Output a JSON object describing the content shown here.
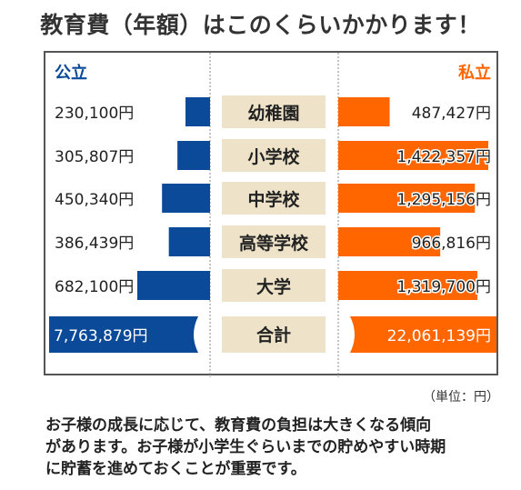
{
  "title": "教育費（年額）はこのくらいかかります！",
  "legend": {
    "public": "公立",
    "private": "私立"
  },
  "colors": {
    "public": "#0b4a99",
    "private": "#ff6600",
    "label_bg": "#eee3c8"
  },
  "unit_note": "（単位：円）",
  "description": [
    "お子様の成長に応じて、教育費の負担は大きくなる傾向",
    "があります。お子様が小学生ぐらいまでの貯めやすい時期",
    "に貯蓄を進めておくことが重要です。"
  ],
  "chart_data": {
    "type": "bar",
    "title": "教育費（年額）はこのくらいかかります！",
    "categories": [
      "幼稚園",
      "小学校",
      "中学校",
      "高等学校",
      "大学"
    ],
    "series": [
      {
        "name": "公立",
        "values": [
          230100,
          305807,
          450340,
          386439,
          682100
        ],
        "labels": [
          "230,100円",
          "305,807円",
          "450,340円",
          "386,439円",
          "682,100円"
        ]
      },
      {
        "name": "私立",
        "values": [
          487427,
          1422357,
          1295156,
          966816,
          1319700
        ],
        "labels": [
          "487,427円",
          "1,422,357円",
          "1,295,156円",
          "966,816円",
          "1,319,700円"
        ]
      }
    ],
    "total": {
      "category": "合計",
      "public": 7763879,
      "private": 22061139,
      "public_label": "7,763,879円",
      "private_label": "22,061,139円"
    },
    "unit": "円",
    "grid": false
  }
}
